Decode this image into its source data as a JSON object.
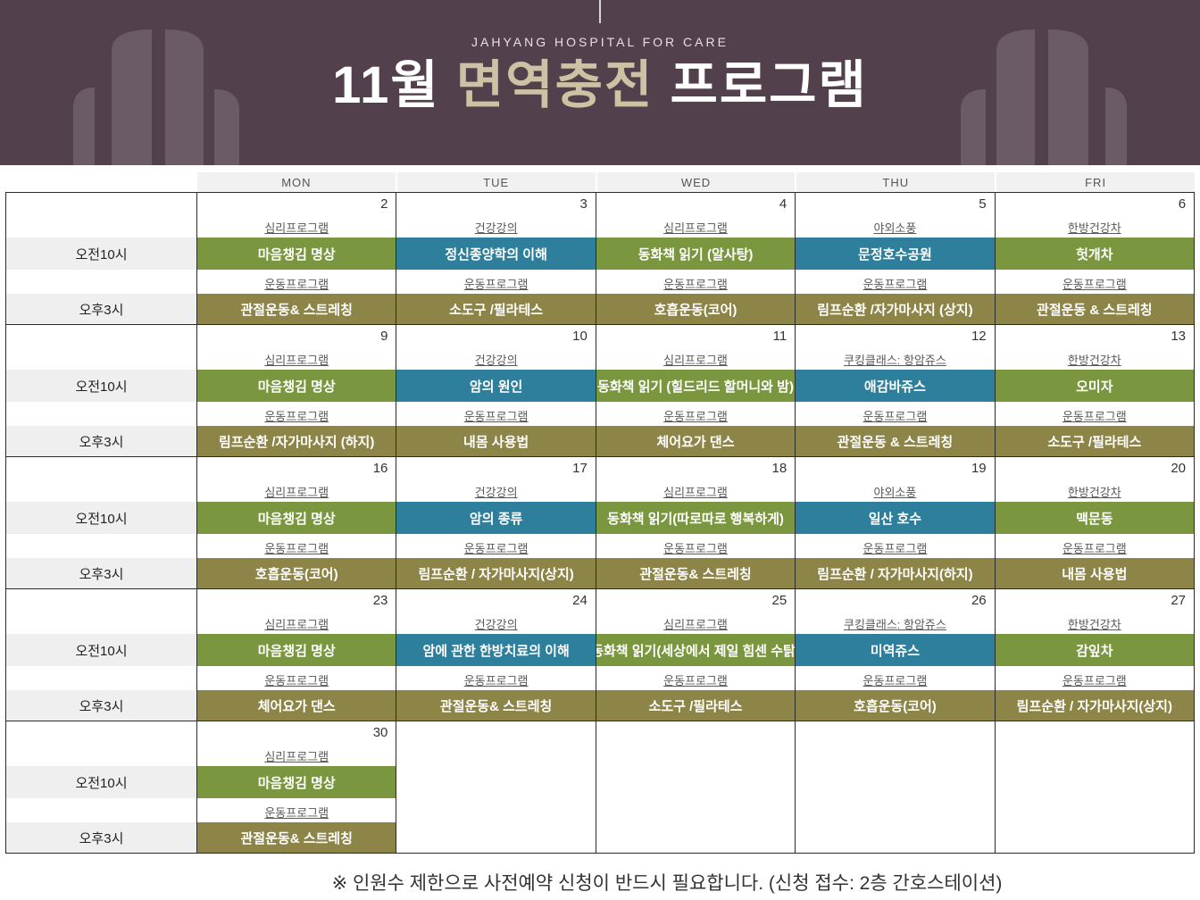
{
  "banner": {
    "hospital": "JAHYANG HOSPITAL FOR CARE",
    "title_prefix": "11월 ",
    "title_accent": "면역충전",
    "title_suffix": " 프로그램"
  },
  "days": [
    "MON",
    "TUE",
    "WED",
    "THU",
    "FRI"
  ],
  "time_labels": {
    "morning": "오전10시",
    "afternoon": "오후3시"
  },
  "weeks": [
    {
      "days": [
        {
          "date": "2",
          "am_cat": "심리프로그램",
          "am": "마음챙김 명상",
          "am_color": "green",
          "pm_cat": "운동프로그램",
          "pm": "관절운동& 스트레칭",
          "pm_color": "olive"
        },
        {
          "date": "3",
          "am_cat": "건강강의",
          "am": "정신종양학의 이해",
          "am_color": "teal",
          "pm_cat": "운동프로그램",
          "pm": "소도구 /필라테스",
          "pm_color": "olive"
        },
        {
          "date": "4",
          "am_cat": "심리프로그램",
          "am": "동화책 읽기 (알사탕)",
          "am_color": "green",
          "pm_cat": "운동프로그램",
          "pm": "호흡운동(코어)",
          "pm_color": "olive"
        },
        {
          "date": "5",
          "am_cat": "야외소풍",
          "am": "문정호수공원",
          "am_color": "teal",
          "pm_cat": "운동프로그램",
          "pm": "림프순환 /자가마사지 (상지)",
          "pm_color": "olive"
        },
        {
          "date": "6",
          "am_cat": "한방건강차",
          "am": "헛개차",
          "am_color": "green",
          "pm_cat": "운동프로그램",
          "pm": "관절운동 & 스트레칭",
          "pm_color": "olive"
        }
      ]
    },
    {
      "days": [
        {
          "date": "9",
          "am_cat": "심리프로그램",
          "am": "마음챙김 명상",
          "am_color": "green",
          "pm_cat": "운동프로그램",
          "pm": "림프순환 /자가마사지 (하지)",
          "pm_color": "olive"
        },
        {
          "date": "10",
          "am_cat": "건강강의",
          "am": "암의 원인",
          "am_color": "teal",
          "pm_cat": "운동프로그램",
          "pm": "내몸 사용법",
          "pm_color": "olive"
        },
        {
          "date": "11",
          "am_cat": "심리프로그램",
          "am": "동화책 읽기 (힐드리드 할머니와 밤)",
          "am_color": "green",
          "pm_cat": "운동프로그램",
          "pm": "체어요가 댄스",
          "pm_color": "olive"
        },
        {
          "date": "12",
          "am_cat": "쿠킹클래스: 항암쥬스",
          "am": "애감바쥬스",
          "am_color": "teal",
          "pm_cat": "운동프로그램",
          "pm": "관절운동 & 스트레칭",
          "pm_color": "olive"
        },
        {
          "date": "13",
          "am_cat": "한방건강차",
          "am": "오미자",
          "am_color": "green",
          "pm_cat": "운동프로그램",
          "pm": "소도구 /필라테스",
          "pm_color": "olive"
        }
      ]
    },
    {
      "days": [
        {
          "date": "16",
          "am_cat": "심리프로그램",
          "am": "마음챙김 명상",
          "am_color": "green",
          "pm_cat": "운동프로그램",
          "pm": "호흡운동(코어)",
          "pm_color": "olive"
        },
        {
          "date": "17",
          "am_cat": "건강강의",
          "am": "암의 종류",
          "am_color": "teal",
          "pm_cat": "운동프로그램",
          "pm": "림프순환 / 자가마사지(상지)",
          "pm_color": "olive"
        },
        {
          "date": "18",
          "am_cat": "심리프로그램",
          "am": "동화책 읽기(따로따로 행복하게)",
          "am_color": "green",
          "pm_cat": "운동프로그램",
          "pm": "관절운동& 스트레칭",
          "pm_color": "olive"
        },
        {
          "date": "19",
          "am_cat": "야외소풍",
          "am": "일산 호수",
          "am_color": "teal",
          "pm_cat": "운동프로그램",
          "pm": "림프순환 / 자가마사지(하지)",
          "pm_color": "olive"
        },
        {
          "date": "20",
          "am_cat": "한방건강차",
          "am": "맥문동",
          "am_color": "green",
          "pm_cat": "운동프로그램",
          "pm": "내몸 사용법",
          "pm_color": "olive"
        }
      ]
    },
    {
      "days": [
        {
          "date": "23",
          "am_cat": "심리프로그램",
          "am": "마음챙김 명상",
          "am_color": "green",
          "pm_cat": "운동프로그램",
          "pm": "체어요가 댄스",
          "pm_color": "olive"
        },
        {
          "date": "24",
          "am_cat": "건강강의",
          "am": "암에 관한 한방치료의 이해",
          "am_color": "teal",
          "pm_cat": "운동프로그램",
          "pm": "관절운동& 스트레칭",
          "pm_color": "olive"
        },
        {
          "date": "25",
          "am_cat": "심리프로그램",
          "am": "동화책 읽기(세상에서 제일 힘센 수탉)",
          "am_color": "green",
          "pm_cat": "운동프로그램",
          "pm": "소도구 /필라테스",
          "pm_color": "olive"
        },
        {
          "date": "26",
          "am_cat": "쿠킹클래스: 항암쥬스",
          "am": "미역쥬스",
          "am_color": "teal",
          "pm_cat": "운동프로그램",
          "pm": "호흡운동(코어)",
          "pm_color": "olive"
        },
        {
          "date": "27",
          "am_cat": "한방건강차",
          "am": "감잎차",
          "am_color": "green",
          "pm_cat": "운동프로그램",
          "pm": "림프순환 / 자가마사지(상지)",
          "pm_color": "olive"
        }
      ]
    },
    {
      "days": [
        {
          "date": "30",
          "am_cat": "심리프로그램",
          "am": "마음챙김 명상",
          "am_color": "green",
          "pm_cat": "운동프로그램",
          "pm": "관절운동& 스트레칭",
          "pm_color": "olive"
        },
        null,
        null,
        null,
        null
      ]
    }
  ],
  "footer": {
    "note": "※ 인원수 제한으로 사전예약 신청이 반드시 필요합니다.  (신청 접수: 2층 간호스테이션)"
  },
  "colors": {
    "banner_bg": "#53404d",
    "accent_tan": "#cdc2a3",
    "green": "#7a963e",
    "teal": "#2e7f9c",
    "olive": "#8d8448",
    "header_gray": "#f1f1f1",
    "border": "#2b2b2b"
  }
}
